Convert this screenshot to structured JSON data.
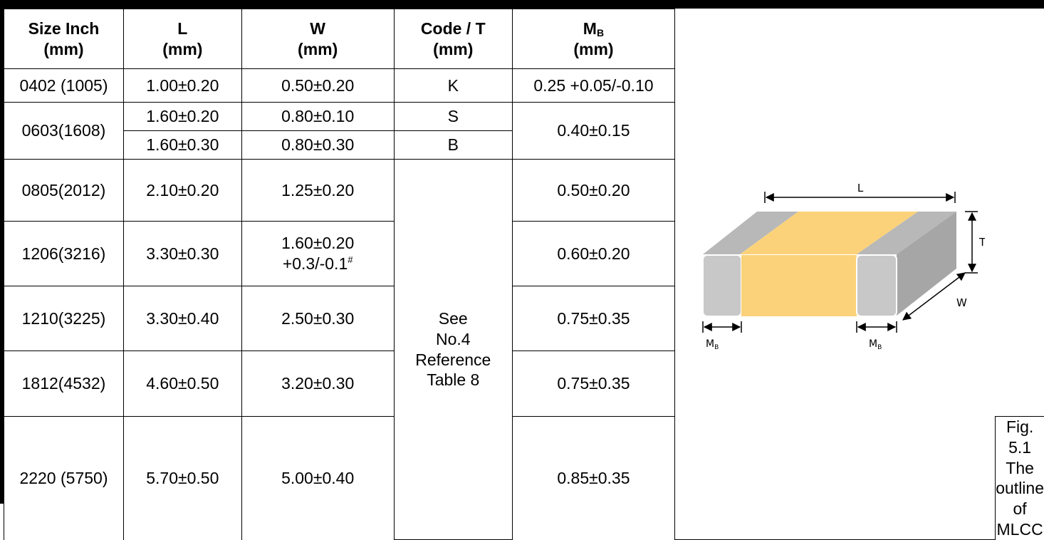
{
  "headers": {
    "size": [
      "Size Inch",
      "(mm)"
    ],
    "l": [
      "L",
      "(mm)"
    ],
    "w": [
      "W",
      "(mm)"
    ],
    "code": [
      "Code / T",
      "(mm)"
    ],
    "mb": {
      "main": "M",
      "sub": "B",
      "unit": "(mm)"
    }
  },
  "rows": [
    {
      "size": "0402 (1005)",
      "l": "1.00±0.20",
      "w": "0.50±0.20",
      "code": "K",
      "mb": "0.25 +0.05/-0.10"
    },
    {
      "size": "0603(1608)",
      "l": "1.60±0.20",
      "w": "0.80±0.10",
      "code": "S",
      "mb": "0.40±0.15"
    },
    {
      "l": "1.60±0.30",
      "w": "0.80±0.30",
      "code": "B"
    },
    {
      "size": "0805(2012)",
      "l": "2.10±0.20",
      "w": "1.25±0.20",
      "mb": "0.50±0.20"
    },
    {
      "size": "1206(3216)",
      "l": "3.30±0.30",
      "w_line1": "1.60±0.20",
      "w_line2": "+0.3/-0.1",
      "w_sup": "#",
      "mb": "0.60±0.20"
    },
    {
      "size": "1210(3225)",
      "l": "3.30±0.40",
      "w": "2.50±0.30",
      "mb": "0.75±0.35"
    },
    {
      "size": "1812(4532)",
      "l": "4.60±0.50",
      "w": "3.20±0.30",
      "mb": "0.75±0.35"
    },
    {
      "size": "2220 (5750)",
      "l": "5.70±0.50",
      "w": "5.00±0.40",
      "mb": "0.85±0.35"
    }
  ],
  "code_reference": [
    "See",
    "No.4",
    "Reference",
    "Table 8"
  ],
  "figure": {
    "label_l": "L",
    "label_t": "T",
    "label_w": "W",
    "label_mb": "M",
    "label_mb_sub": "B",
    "colors": {
      "electrode": "#c8c8c8",
      "electrode_dark": "#a9a9a9",
      "body": "#fbd27a",
      "body_top": "#fbd27a",
      "edge": "#ffffff"
    }
  },
  "caption": "Fig. 5.1 The outline of MLCC"
}
